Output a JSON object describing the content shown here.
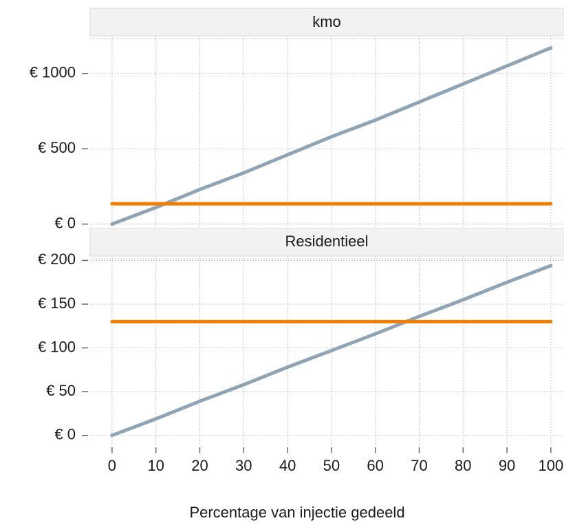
{
  "chart_data": {
    "type": "line",
    "xlabel": "Percentage van injectie gedeeld",
    "x_ticks": [
      0,
      10,
      20,
      30,
      40,
      50,
      60,
      70,
      80,
      90,
      100
    ],
    "x_tick_labels": [
      "0",
      "10",
      "20",
      "30",
      "40",
      "50",
      "60",
      "70",
      "80",
      "90",
      "100"
    ],
    "xlim": [
      -5,
      103
    ],
    "grid": true,
    "colors": {
      "increasing": "#8fa5b5",
      "flat": "#f07f00"
    },
    "facets": [
      {
        "title": "kmo",
        "ylim": [
          -20,
          1250
        ],
        "y_ticks": [
          0,
          500,
          1000
        ],
        "y_tick_labels": [
          "€ 0",
          "€ 500",
          "€ 1000"
        ],
        "series": [
          {
            "x": [
              0,
              10,
              20,
              30,
              40,
              50,
              60,
              70,
              80,
              90,
              100
            ],
            "values": [
              0,
              110,
              230,
              340,
              460,
              580,
              690,
              810,
              930,
              1050,
              1170
            ]
          },
          {
            "x": [
              0,
              100
            ],
            "values": [
              135,
              135
            ]
          }
        ]
      },
      {
        "title": "Residentieel",
        "ylim": [
          -12,
          205
        ],
        "y_ticks": [
          0,
          50,
          100,
          150,
          200
        ],
        "y_tick_labels": [
          "€ 0",
          "€ 50",
          "€ 100",
          "€ 150",
          "€ 200"
        ],
        "series": [
          {
            "x": [
              0,
              10,
              20,
              30,
              40,
              50,
              60,
              70,
              80,
              90,
              100
            ],
            "values": [
              0,
              19,
              39,
              58,
              78,
              97,
              116,
              136,
              155,
              175,
              194
            ]
          },
          {
            "x": [
              0,
              100
            ],
            "values": [
              130,
              130
            ]
          }
        ]
      }
    ]
  }
}
